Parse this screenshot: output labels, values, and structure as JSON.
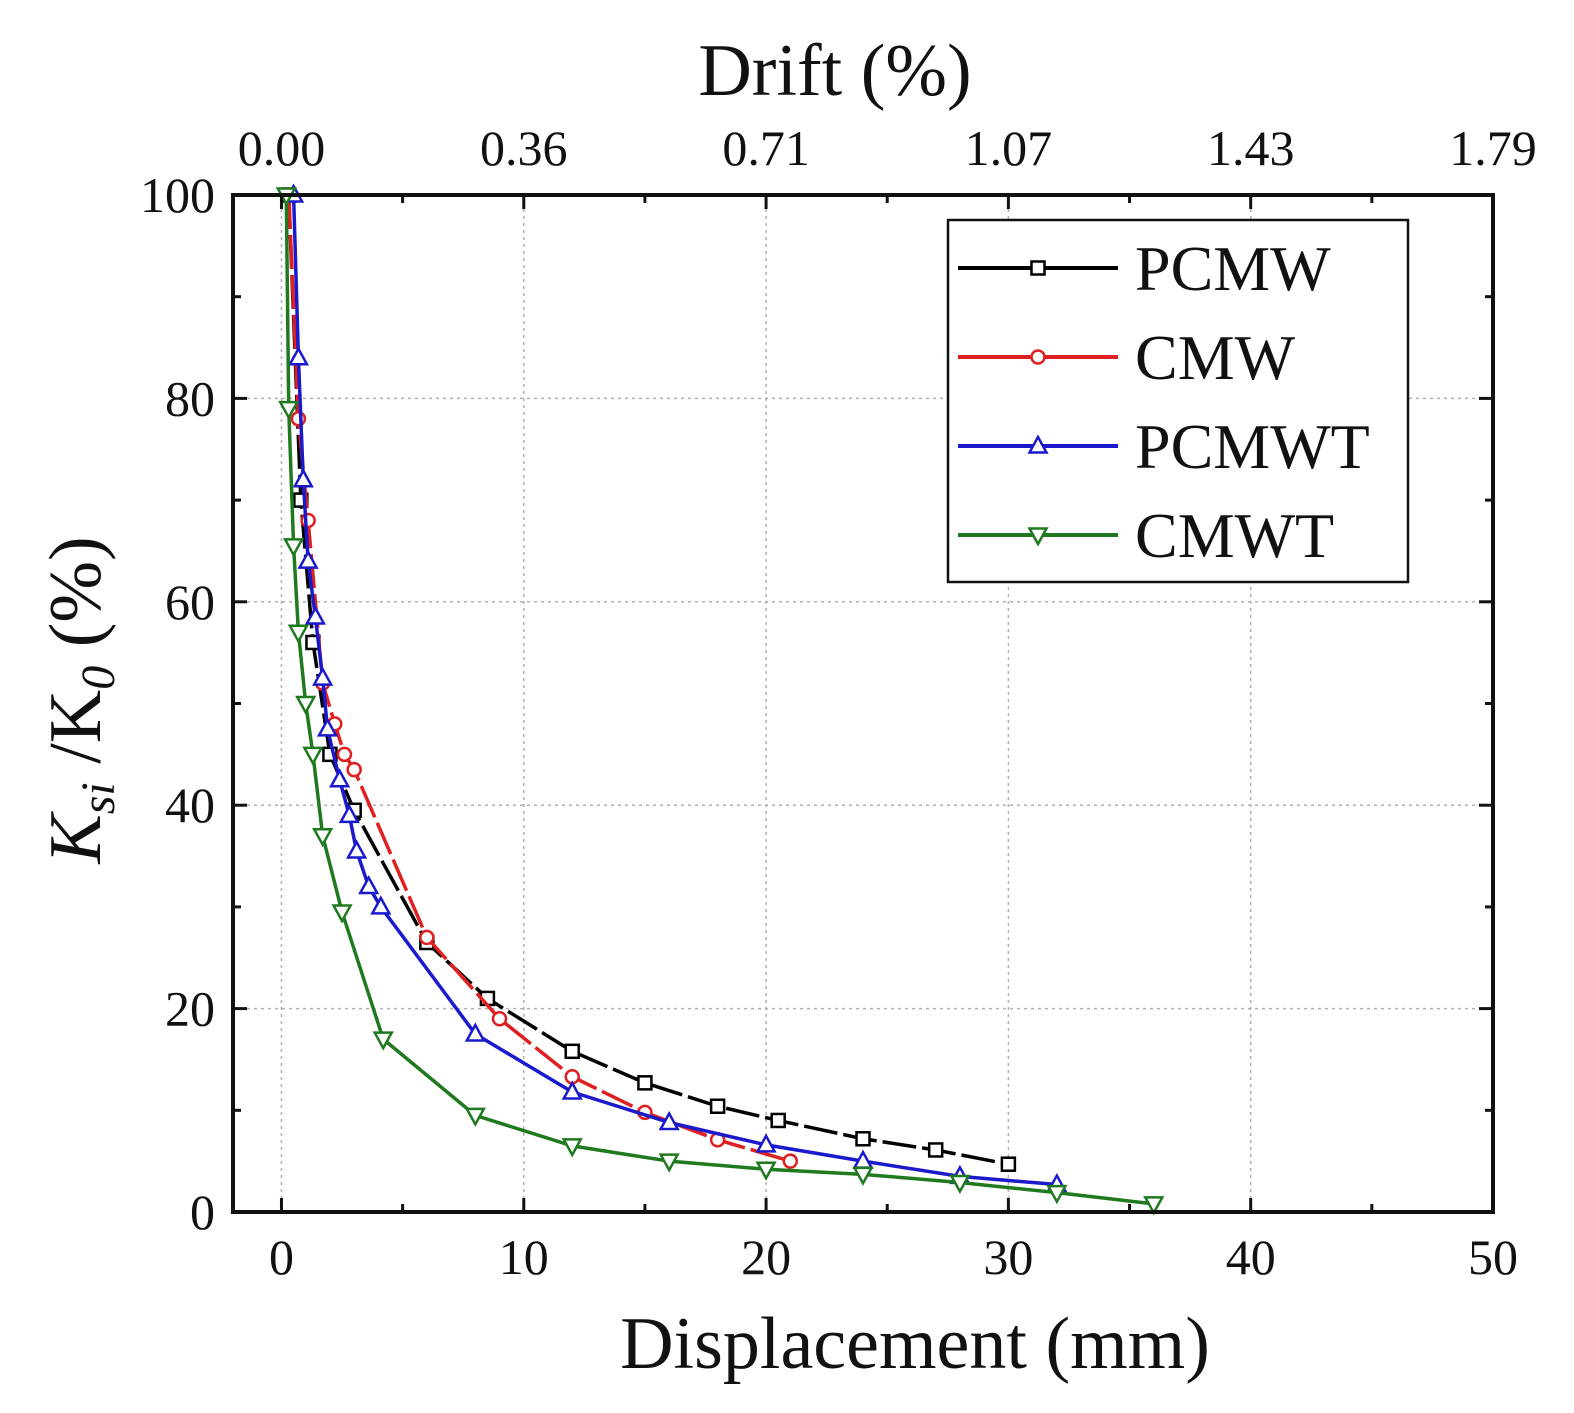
{
  "chart_data": {
    "type": "line",
    "title": "",
    "xlabel": "Displacement (mm)",
    "ylabel_main": "K",
    "ylabel_sub1": "si",
    "ylabel_mid": " /K",
    "ylabel_sub2": "0",
    "ylabel_tail": " (%)",
    "ylabel": "Ksi /K0 (%)",
    "top_xlabel": "Drift (%)",
    "xlim": [
      -2,
      50
    ],
    "ylim": [
      0,
      100
    ],
    "x_ticks": [
      0,
      10,
      20,
      30,
      40,
      50
    ],
    "x_tick_labels": [
      "0",
      "10",
      "20",
      "30",
      "40",
      "50"
    ],
    "y_ticks": [
      0,
      20,
      40,
      60,
      80,
      100
    ],
    "y_tick_labels": [
      "0",
      "20",
      "40",
      "60",
      "80",
      "100"
    ],
    "top_ticks": [
      0,
      10,
      20,
      30,
      40,
      50
    ],
    "top_tick_labels": [
      "0.00",
      "0.36",
      "0.71",
      "1.07",
      "1.43",
      "1.79"
    ],
    "grid": true,
    "legend_position": "top-right",
    "series": [
      {
        "name": "PCMW",
        "color": "#000000",
        "marker": "square",
        "dash": "long-dash",
        "x": [
          0.3,
          0.8,
          1.3,
          2.0,
          3.0,
          6.0,
          8.5,
          12.0,
          15.0,
          18.0,
          20.5,
          24.0,
          27.0,
          30.0
        ],
        "y": [
          100,
          70,
          56,
          45,
          39.5,
          26.5,
          21,
          15.8,
          12.7,
          10.4,
          9,
          7.2,
          6.1,
          4.7
        ]
      },
      {
        "name": "CMW",
        "color": "#e02020",
        "marker": "circle",
        "dash": "long-dash",
        "x": [
          0.3,
          0.7,
          1.1,
          1.7,
          2.2,
          2.6,
          3.0,
          6.0,
          9.0,
          12.0,
          15.0,
          18.0,
          21.0
        ],
        "y": [
          100,
          78,
          68,
          52,
          48,
          45,
          43.5,
          27,
          19,
          13.3,
          9.8,
          7.1,
          5
        ],
        "note": "smooth curve"
      },
      {
        "name": "PCMWT",
        "color": "#1a1acc",
        "marker": "triangle-up",
        "dash": "solid",
        "x": [
          0.5,
          0.7,
          0.9,
          1.1,
          1.4,
          1.7,
          1.9,
          2.4,
          2.8,
          3.1,
          3.6,
          4.1,
          8.0,
          12.0,
          16.0,
          20.0,
          24.0,
          28.0,
          32.0
        ],
        "y": [
          100,
          84,
          72,
          64,
          58.5,
          52.5,
          47.5,
          42.5,
          39,
          35.5,
          32,
          30,
          17.5,
          11.8,
          8.8,
          6.6,
          5,
          3.5,
          2.7
        ]
      },
      {
        "name": "CMWT",
        "color": "#1f7a1f",
        "marker": "triangle-down",
        "dash": "solid",
        "x": [
          0.2,
          0.3,
          0.5,
          0.7,
          1.0,
          1.3,
          1.7,
          2.5,
          4.2,
          8.0,
          12.0,
          16.0,
          20.0,
          24.0,
          28.0,
          32.0,
          36.0
        ],
        "y": [
          100,
          79,
          65.5,
          57,
          50,
          45,
          37,
          29.5,
          17,
          9.5,
          6.5,
          5,
          4.2,
          3.7,
          2.9,
          1.9,
          0.8
        ]
      }
    ]
  }
}
